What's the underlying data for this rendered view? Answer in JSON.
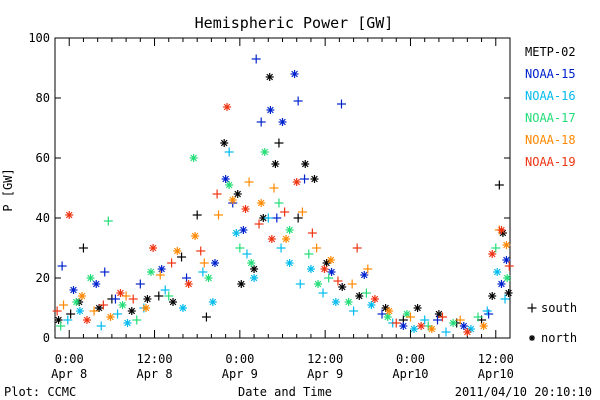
{
  "chart_data": {
    "type": "scatter",
    "title": "Hemispheric Power [GW]",
    "xlabel": "Date and Time",
    "ylabel": "P [GW]",
    "ylim": [
      0,
      100
    ],
    "y_ticks": [
      0,
      20,
      40,
      60,
      80,
      100
    ],
    "x_unit": "hours since 2011-04-07 22:00 UT",
    "xlim": [
      0,
      64
    ],
    "x_ticks": [
      {
        "x": 2,
        "line1": "0:00",
        "line2": "Apr 8"
      },
      {
        "x": 14,
        "line1": "12:00",
        "line2": "Apr 8"
      },
      {
        "x": 26,
        "line1": "0:00",
        "line2": "Apr 9"
      },
      {
        "x": 38,
        "line1": "12:00",
        "line2": "Apr 9"
      },
      {
        "x": 50,
        "line1": "0:00",
        "line2": "Apr10"
      },
      {
        "x": 62,
        "line1": "12:00",
        "line2": "Apr10"
      }
    ],
    "grid": false,
    "legend_position": "right",
    "series": [
      {
        "name": "METP-02",
        "color": "#000000",
        "points": [
          {
            "x": 0.5,
            "y": 6,
            "m": "*"
          },
          {
            "x": 2.2,
            "y": 8,
            "m": "+"
          },
          {
            "x": 3.4,
            "y": 12,
            "m": "*"
          },
          {
            "x": 4.0,
            "y": 30,
            "m": "+"
          },
          {
            "x": 6.2,
            "y": 10,
            "m": "*"
          },
          {
            "x": 8.0,
            "y": 13,
            "m": "+"
          },
          {
            "x": 10.8,
            "y": 9,
            "m": "*"
          },
          {
            "x": 13.0,
            "y": 13,
            "m": "*"
          },
          {
            "x": 14.6,
            "y": 14,
            "m": "+"
          },
          {
            "x": 16.6,
            "y": 12,
            "m": "*"
          },
          {
            "x": 17.8,
            "y": 27,
            "m": "+"
          },
          {
            "x": 20.0,
            "y": 41,
            "m": "+"
          },
          {
            "x": 21.3,
            "y": 7,
            "m": "+"
          },
          {
            "x": 23.8,
            "y": 65,
            "m": "*"
          },
          {
            "x": 25.7,
            "y": 48,
            "m": "*"
          },
          {
            "x": 26.2,
            "y": 18,
            "m": "*"
          },
          {
            "x": 28.0,
            "y": 23,
            "m": "*"
          },
          {
            "x": 29.3,
            "y": 40,
            "m": "*"
          },
          {
            "x": 30.2,
            "y": 87,
            "m": "*"
          },
          {
            "x": 31.5,
            "y": 65,
            "m": "+"
          },
          {
            "x": 31.0,
            "y": 58,
            "m": "*"
          },
          {
            "x": 34.2,
            "y": 40,
            "m": "+"
          },
          {
            "x": 35.2,
            "y": 58,
            "m": "*"
          },
          {
            "x": 36.5,
            "y": 53,
            "m": "*"
          },
          {
            "x": 38.2,
            "y": 25,
            "m": "*"
          },
          {
            "x": 40.4,
            "y": 17,
            "m": "*"
          },
          {
            "x": 42.8,
            "y": 14,
            "m": "*"
          },
          {
            "x": 46.5,
            "y": 10,
            "m": "*"
          },
          {
            "x": 49.0,
            "y": 6,
            "m": "+"
          },
          {
            "x": 51.0,
            "y": 10,
            "m": "*"
          },
          {
            "x": 54.0,
            "y": 8,
            "m": "*"
          },
          {
            "x": 56.5,
            "y": 5,
            "m": "+"
          },
          {
            "x": 60.0,
            "y": 6,
            "m": "+"
          },
          {
            "x": 61.5,
            "y": 14,
            "m": "*"
          },
          {
            "x": 62.5,
            "y": 51,
            "m": "+"
          },
          {
            "x": 63.0,
            "y": 35,
            "m": "*"
          },
          {
            "x": 63.8,
            "y": 15,
            "m": "*"
          }
        ]
      },
      {
        "name": "NOAA-15",
        "color": "#0022cc",
        "points": [
          {
            "x": 1.0,
            "y": 24,
            "m": "+"
          },
          {
            "x": 2.6,
            "y": 16,
            "m": "*"
          },
          {
            "x": 5.8,
            "y": 18,
            "m": "*"
          },
          {
            "x": 7.0,
            "y": 22,
            "m": "+"
          },
          {
            "x": 8.5,
            "y": 13,
            "m": "+"
          },
          {
            "x": 12.0,
            "y": 18,
            "m": "+"
          },
          {
            "x": 15.0,
            "y": 23,
            "m": "*"
          },
          {
            "x": 18.5,
            "y": 20,
            "m": "+"
          },
          {
            "x": 22.5,
            "y": 25,
            "m": "*"
          },
          {
            "x": 24.0,
            "y": 53,
            "m": "*"
          },
          {
            "x": 25.0,
            "y": 45,
            "m": "+"
          },
          {
            "x": 26.5,
            "y": 36,
            "m": "*"
          },
          {
            "x": 28.3,
            "y": 93,
            "m": "+"
          },
          {
            "x": 29.0,
            "y": 72,
            "m": "+"
          },
          {
            "x": 30.3,
            "y": 76,
            "m": "*"
          },
          {
            "x": 31.2,
            "y": 40,
            "m": "+"
          },
          {
            "x": 32.0,
            "y": 72,
            "m": "*"
          },
          {
            "x": 33.7,
            "y": 88,
            "m": "*"
          },
          {
            "x": 34.2,
            "y": 79,
            "m": "+"
          },
          {
            "x": 35.1,
            "y": 53,
            "m": "+"
          },
          {
            "x": 38.9,
            "y": 22,
            "m": "*"
          },
          {
            "x": 40.3,
            "y": 78,
            "m": "+"
          },
          {
            "x": 43.5,
            "y": 21,
            "m": "*"
          },
          {
            "x": 46.0,
            "y": 8,
            "m": "+"
          },
          {
            "x": 49.0,
            "y": 4,
            "m": "*"
          },
          {
            "x": 53.8,
            "y": 6,
            "m": "+"
          },
          {
            "x": 57.5,
            "y": 4,
            "m": "*"
          },
          {
            "x": 61.0,
            "y": 8,
            "m": "+"
          },
          {
            "x": 62.8,
            "y": 18,
            "m": "*"
          },
          {
            "x": 63.5,
            "y": 26,
            "m": "*"
          }
        ]
      },
      {
        "name": "NOAA-16",
        "color": "#00bbee",
        "points": [
          {
            "x": 1.8,
            "y": 6,
            "m": "+"
          },
          {
            "x": 3.5,
            "y": 9,
            "m": "*"
          },
          {
            "x": 6.5,
            "y": 4,
            "m": "+"
          },
          {
            "x": 8.8,
            "y": 8,
            "m": "+"
          },
          {
            "x": 10.2,
            "y": 5,
            "m": "*"
          },
          {
            "x": 12.5,
            "y": 10,
            "m": "+"
          },
          {
            "x": 15.5,
            "y": 16,
            "m": "+"
          },
          {
            "x": 18.0,
            "y": 10,
            "m": "*"
          },
          {
            "x": 20.8,
            "y": 22,
            "m": "+"
          },
          {
            "x": 22.2,
            "y": 12,
            "m": "*"
          },
          {
            "x": 24.5,
            "y": 62,
            "m": "+"
          },
          {
            "x": 25.5,
            "y": 35,
            "m": "*"
          },
          {
            "x": 27.0,
            "y": 28,
            "m": "+"
          },
          {
            "x": 28.0,
            "y": 20,
            "m": "*"
          },
          {
            "x": 30.0,
            "y": 40,
            "m": "+"
          },
          {
            "x": 31.8,
            "y": 30,
            "m": "+"
          },
          {
            "x": 33.0,
            "y": 25,
            "m": "*"
          },
          {
            "x": 34.5,
            "y": 18,
            "m": "+"
          },
          {
            "x": 36.0,
            "y": 23,
            "m": "*"
          },
          {
            "x": 37.7,
            "y": 15,
            "m": "+"
          },
          {
            "x": 39.5,
            "y": 12,
            "m": "*"
          },
          {
            "x": 42.0,
            "y": 9,
            "m": "+"
          },
          {
            "x": 44.5,
            "y": 11,
            "m": "*"
          },
          {
            "x": 47.5,
            "y": 5,
            "m": "+"
          },
          {
            "x": 50.5,
            "y": 3,
            "m": "*"
          },
          {
            "x": 52.0,
            "y": 6,
            "m": "+"
          },
          {
            "x": 55.0,
            "y": 2,
            "m": "+"
          },
          {
            "x": 58.5,
            "y": 3,
            "m": "*"
          },
          {
            "x": 60.8,
            "y": 9,
            "m": "+"
          },
          {
            "x": 62.2,
            "y": 22,
            "m": "*"
          },
          {
            "x": 63.3,
            "y": 13,
            "m": "+"
          }
        ]
      },
      {
        "name": "NOAA-17",
        "color": "#22dd77",
        "points": [
          {
            "x": 0.8,
            "y": 4,
            "m": "+"
          },
          {
            "x": 3.0,
            "y": 12,
            "m": "*"
          },
          {
            "x": 5.0,
            "y": 20,
            "m": "*"
          },
          {
            "x": 7.5,
            "y": 39,
            "m": "+"
          },
          {
            "x": 9.5,
            "y": 11,
            "m": "*"
          },
          {
            "x": 11.5,
            "y": 6,
            "m": "+"
          },
          {
            "x": 13.5,
            "y": 22,
            "m": "*"
          },
          {
            "x": 16.0,
            "y": 14,
            "m": "+"
          },
          {
            "x": 19.5,
            "y": 60,
            "m": "*"
          },
          {
            "x": 21.6,
            "y": 20,
            "m": "*"
          },
          {
            "x": 24.5,
            "y": 51,
            "m": "*"
          },
          {
            "x": 26.0,
            "y": 30,
            "m": "+"
          },
          {
            "x": 27.6,
            "y": 25,
            "m": "*"
          },
          {
            "x": 29.5,
            "y": 62,
            "m": "*"
          },
          {
            "x": 31.5,
            "y": 45,
            "m": "+"
          },
          {
            "x": 33.0,
            "y": 36,
            "m": "*"
          },
          {
            "x": 35.7,
            "y": 28,
            "m": "+"
          },
          {
            "x": 37.0,
            "y": 18,
            "m": "*"
          },
          {
            "x": 38.5,
            "y": 20,
            "m": "+"
          },
          {
            "x": 41.3,
            "y": 12,
            "m": "*"
          },
          {
            "x": 43.8,
            "y": 15,
            "m": "+"
          },
          {
            "x": 46.8,
            "y": 7,
            "m": "*"
          },
          {
            "x": 49.5,
            "y": 8,
            "m": "*"
          },
          {
            "x": 52.5,
            "y": 4,
            "m": "+"
          },
          {
            "x": 56.0,
            "y": 5,
            "m": "*"
          },
          {
            "x": 59.5,
            "y": 7,
            "m": "+"
          },
          {
            "x": 62.0,
            "y": 30,
            "m": "+"
          },
          {
            "x": 63.6,
            "y": 20,
            "m": "*"
          }
        ]
      },
      {
        "name": "NOAA-18",
        "color": "#ff8800",
        "points": [
          {
            "x": 1.2,
            "y": 11,
            "m": "+"
          },
          {
            "x": 3.8,
            "y": 14,
            "m": "*"
          },
          {
            "x": 5.5,
            "y": 9,
            "m": "+"
          },
          {
            "x": 7.8,
            "y": 7,
            "m": "*"
          },
          {
            "x": 10.0,
            "y": 14,
            "m": "+"
          },
          {
            "x": 12.8,
            "y": 10,
            "m": "*"
          },
          {
            "x": 14.8,
            "y": 21,
            "m": "+"
          },
          {
            "x": 17.2,
            "y": 29,
            "m": "*"
          },
          {
            "x": 19.7,
            "y": 34,
            "m": "*"
          },
          {
            "x": 21.0,
            "y": 25,
            "m": "+"
          },
          {
            "x": 23.0,
            "y": 41,
            "m": "+"
          },
          {
            "x": 25.0,
            "y": 46,
            "m": "*"
          },
          {
            "x": 27.3,
            "y": 52,
            "m": "+"
          },
          {
            "x": 29.0,
            "y": 45,
            "m": "*"
          },
          {
            "x": 30.8,
            "y": 50,
            "m": "+"
          },
          {
            "x": 32.5,
            "y": 33,
            "m": "*"
          },
          {
            "x": 34.8,
            "y": 42,
            "m": "+"
          },
          {
            "x": 36.8,
            "y": 30,
            "m": "+"
          },
          {
            "x": 38.8,
            "y": 26,
            "m": "*"
          },
          {
            "x": 41.8,
            "y": 18,
            "m": "+"
          },
          {
            "x": 44.0,
            "y": 23,
            "m": "+"
          },
          {
            "x": 47.0,
            "y": 9,
            "m": "*"
          },
          {
            "x": 50.0,
            "y": 7,
            "m": "+"
          },
          {
            "x": 53.0,
            "y": 3,
            "m": "*"
          },
          {
            "x": 57.0,
            "y": 6,
            "m": "+"
          },
          {
            "x": 60.3,
            "y": 4,
            "m": "*"
          },
          {
            "x": 62.5,
            "y": 36,
            "m": "+"
          },
          {
            "x": 63.5,
            "y": 31,
            "m": "*"
          }
        ]
      },
      {
        "name": "NOAA-19",
        "color": "#ee3311",
        "points": [
          {
            "x": 0.3,
            "y": 9,
            "m": "+"
          },
          {
            "x": 2.0,
            "y": 41,
            "m": "*"
          },
          {
            "x": 4.5,
            "y": 6,
            "m": "*"
          },
          {
            "x": 6.8,
            "y": 11,
            "m": "+"
          },
          {
            "x": 9.2,
            "y": 15,
            "m": "*"
          },
          {
            "x": 11.0,
            "y": 13,
            "m": "+"
          },
          {
            "x": 13.8,
            "y": 30,
            "m": "*"
          },
          {
            "x": 16.4,
            "y": 25,
            "m": "+"
          },
          {
            "x": 18.8,
            "y": 18,
            "m": "*"
          },
          {
            "x": 20.5,
            "y": 29,
            "m": "+"
          },
          {
            "x": 22.8,
            "y": 48,
            "m": "+"
          },
          {
            "x": 24.2,
            "y": 77,
            "m": "*"
          },
          {
            "x": 26.8,
            "y": 43,
            "m": "*"
          },
          {
            "x": 28.7,
            "y": 38,
            "m": "+"
          },
          {
            "x": 30.5,
            "y": 33,
            "m": "*"
          },
          {
            "x": 32.3,
            "y": 42,
            "m": "+"
          },
          {
            "x": 34.0,
            "y": 52,
            "m": "*"
          },
          {
            "x": 36.2,
            "y": 35,
            "m": "+"
          },
          {
            "x": 37.9,
            "y": 23,
            "m": "*"
          },
          {
            "x": 39.8,
            "y": 19,
            "m": "+"
          },
          {
            "x": 42.5,
            "y": 30,
            "m": "+"
          },
          {
            "x": 45.0,
            "y": 13,
            "m": "*"
          },
          {
            "x": 48.0,
            "y": 5,
            "m": "+"
          },
          {
            "x": 51.5,
            "y": 4,
            "m": "*"
          },
          {
            "x": 54.5,
            "y": 7,
            "m": "+"
          },
          {
            "x": 58.0,
            "y": 2,
            "m": "*"
          },
          {
            "x": 61.5,
            "y": 28,
            "m": "*"
          },
          {
            "x": 62.8,
            "y": 36,
            "m": "*"
          },
          {
            "x": 63.9,
            "y": 24,
            "m": "+"
          }
        ]
      }
    ]
  },
  "symbol_legend": [
    {
      "symbol": "+",
      "label": "south"
    },
    {
      "symbol": "*",
      "label": "north"
    }
  ],
  "footer": {
    "left": "Plot: CCMC",
    "right": "2011/04/10 20:10:10"
  }
}
